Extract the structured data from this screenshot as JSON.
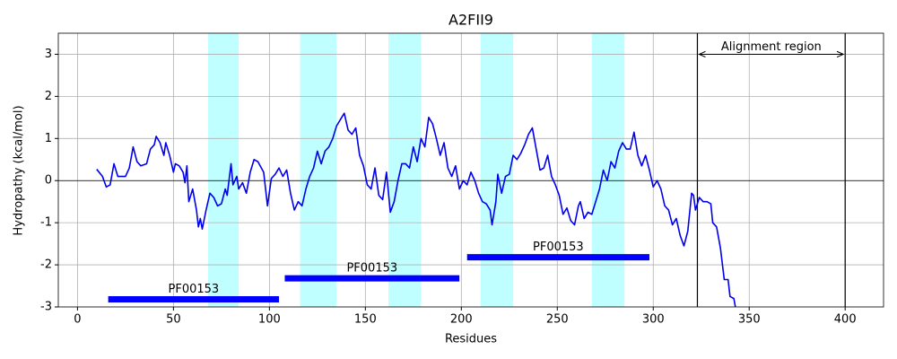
{
  "chart_data": {
    "type": "line",
    "title": "A2FII9",
    "xlabel": "Residues",
    "ylabel": "Hydropathy (kcal/mol)",
    "xlim": [
      -10,
      420
    ],
    "ylim": [
      -3,
      3.5
    ],
    "xticks": [
      0,
      50,
      100,
      150,
      200,
      250,
      300,
      350,
      400
    ],
    "yticks": [
      -3,
      -2,
      -1,
      0,
      1,
      2,
      3
    ],
    "grid": true,
    "x": [
      10,
      13,
      15,
      17,
      19,
      21,
      25,
      27,
      29,
      31,
      33,
      36,
      38,
      40,
      41,
      43,
      45,
      46,
      48,
      50,
      51,
      53,
      55,
      56,
      57,
      58,
      60,
      62,
      63,
      64,
      65,
      67,
      69,
      71,
      73,
      75,
      77,
      78,
      80,
      81,
      83,
      84,
      86,
      88,
      90,
      92,
      94,
      97,
      99,
      101,
      103,
      105,
      107,
      109,
      111,
      113,
      115,
      117,
      119,
      121,
      123,
      125,
      127,
      129,
      131,
      133,
      135,
      137,
      139,
      141,
      143,
      145,
      147,
      149,
      151,
      153,
      155,
      157,
      159,
      161,
      163,
      165,
      167,
      169,
      171,
      173,
      175,
      177,
      179,
      181,
      183,
      185,
      187,
      189,
      191,
      193,
      195,
      197,
      199,
      201,
      203,
      205,
      207,
      209,
      211,
      213,
      215,
      216,
      218,
      219,
      221,
      223,
      225,
      227,
      229,
      231,
      233,
      235,
      237,
      239,
      241,
      243,
      245,
      247,
      249,
      251,
      253,
      255,
      257,
      259,
      261,
      262,
      264,
      266,
      268,
      270,
      272,
      274,
      276,
      278,
      280,
      282,
      284,
      286,
      288,
      290,
      292,
      294,
      296,
      298,
      300,
      302,
      304,
      306,
      308,
      310,
      312,
      314,
      316,
      318,
      320,
      321,
      322,
      324,
      326,
      328,
      330,
      331,
      333,
      335,
      337,
      339,
      340,
      342,
      344
    ],
    "series": [
      {
        "color": "#0000ee",
        "values": [
          0.27,
          0.1,
          -0.15,
          -0.1,
          0.4,
          0.1,
          0.1,
          0.3,
          0.8,
          0.45,
          0.35,
          0.4,
          0.75,
          0.85,
          1.05,
          0.9,
          0.6,
          0.9,
          0.6,
          0.2,
          0.4,
          0.35,
          0.2,
          -0.05,
          0.35,
          -0.5,
          -0.2,
          -0.7,
          -1.1,
          -0.9,
          -1.15,
          -0.7,
          -0.3,
          -0.4,
          -0.6,
          -0.55,
          -0.2,
          -0.35,
          0.4,
          -0.1,
          0.1,
          -0.2,
          -0.05,
          -0.3,
          0.2,
          0.5,
          0.45,
          0.2,
          -0.6,
          0.05,
          0.15,
          0.3,
          0.1,
          0.25,
          -0.3,
          -0.7,
          -0.5,
          -0.6,
          -0.2,
          0.1,
          0.3,
          0.7,
          0.4,
          0.7,
          0.8,
          1.0,
          1.3,
          1.45,
          1.6,
          1.2,
          1.1,
          1.25,
          0.6,
          0.35,
          -0.1,
          -0.2,
          0.3,
          -0.35,
          -0.45,
          0.2,
          -0.75,
          -0.5,
          0.0,
          0.4,
          0.4,
          0.3,
          0.8,
          0.45,
          1.0,
          0.8,
          1.5,
          1.35,
          1.0,
          0.6,
          0.9,
          0.3,
          0.1,
          0.35,
          -0.2,
          0.0,
          -0.1,
          0.2,
          0.0,
          -0.3,
          -0.5,
          -0.55,
          -0.7,
          -1.05,
          -0.5,
          0.15,
          -0.3,
          0.1,
          0.15,
          0.6,
          0.5,
          0.65,
          0.85,
          1.1,
          1.25,
          0.75,
          0.25,
          0.3,
          0.6,
          0.1,
          -0.1,
          -0.35,
          -0.8,
          -0.65,
          -0.95,
          -1.05,
          -0.6,
          -0.5,
          -0.9,
          -0.75,
          -0.8,
          -0.5,
          -0.2,
          0.25,
          0.0,
          0.45,
          0.3,
          0.7,
          0.9,
          0.75,
          0.75,
          1.15,
          0.6,
          0.35,
          0.6,
          0.25,
          -0.15,
          0.0,
          -0.2,
          -0.6,
          -0.7,
          -1.05,
          -0.9,
          -1.3,
          -1.55,
          -1.2,
          -0.3,
          -0.35,
          -0.7,
          -0.4,
          -0.5,
          -0.5,
          -0.55,
          -1.0,
          -1.1,
          -1.6,
          -2.35,
          -2.35,
          -2.75,
          -2.8,
          -3.3
        ]
      }
    ],
    "shaded_regions": [
      [
        68,
        84
      ],
      [
        116,
        135
      ],
      [
        162,
        179
      ],
      [
        210,
        227
      ],
      [
        268,
        285
      ]
    ],
    "hline": 0,
    "vlines": [
      323,
      400
    ],
    "annotation": {
      "text": "Alignment region",
      "x": [
        323,
        400
      ],
      "y": 3
    },
    "domains": [
      {
        "label": "PF00153",
        "start": 16,
        "end": 105,
        "y": -2.82
      },
      {
        "label": "PF00153",
        "start": 108,
        "end": 199,
        "y": -2.32
      },
      {
        "label": "PF00153",
        "start": 203,
        "end": 298,
        "y": -1.82
      }
    ]
  }
}
